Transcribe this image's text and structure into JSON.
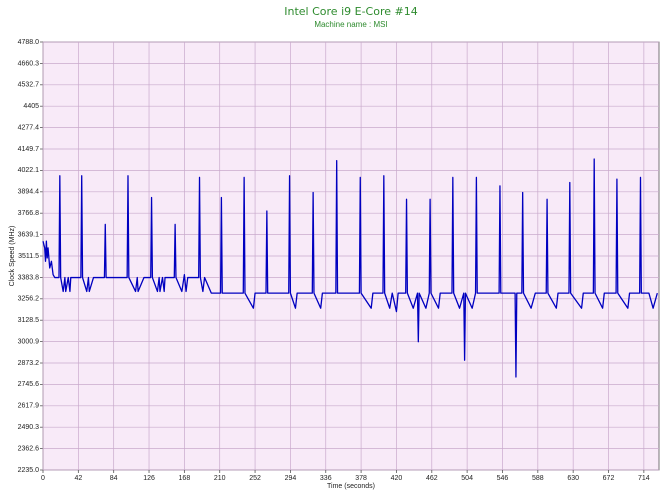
{
  "chart_data": {
    "type": "line",
    "title": "Intel Core i9 E-Core #14",
    "subtitle": "Machine name : MSI",
    "xlabel": "Time (seconds)",
    "ylabel": "Clock Speed (MHz)",
    "color": "#0000c0",
    "grid": true,
    "xlim": [
      0,
      732
    ],
    "ylim": [
      2235,
      4788
    ],
    "xticks": [
      0,
      42,
      84,
      126,
      168,
      210,
      252,
      294,
      336,
      378,
      420,
      462,
      504,
      546,
      588,
      630,
      672,
      714
    ],
    "yticks": [
      {
        "value": 2235,
        "label": "2235.0"
      },
      2362.6,
      2490.3,
      2617.9,
      2745.6,
      2873.2,
      3000.9,
      3128.5,
      3256.2,
      3383.8,
      3511.5,
      3639.1,
      3766.8,
      3894.4,
      4022.1,
      4149.7,
      4277.4,
      4405,
      4532.7,
      4660.3,
      {
        "value": 4788,
        "label": "4788.0"
      }
    ],
    "x": [
      0,
      2,
      3,
      4,
      5,
      6,
      8,
      10,
      12,
      14,
      19,
      20,
      21,
      24,
      26,
      27,
      30,
      32,
      33,
      45,
      46,
      47,
      52,
      54,
      55,
      60,
      73,
      74,
      75,
      100,
      101,
      102,
      110,
      112,
      113,
      120,
      128,
      129,
      130,
      136,
      138,
      139,
      142,
      144,
      145,
      156,
      157,
      158,
      165,
      168,
      170,
      172,
      185,
      186,
      187,
      190,
      192,
      200,
      211,
      212,
      213,
      220,
      238,
      239,
      240,
      250,
      252,
      265,
      266,
      267,
      280,
      292,
      293,
      294,
      300,
      302,
      320,
      321,
      322,
      330,
      332,
      348,
      349,
      350,
      376,
      377,
      378,
      390,
      392,
      404,
      405,
      406,
      412,
      415,
      420,
      422,
      431,
      432,
      433,
      440,
      445,
      446,
      447,
      455,
      459,
      460,
      461,
      470,
      472,
      486,
      487,
      488,
      495,
      500,
      501,
      502,
      510,
      514,
      515,
      516,
      525,
      542,
      543,
      544,
      555,
      561,
      562,
      563,
      569,
      570,
      571,
      580,
      585,
      598,
      599,
      600,
      610,
      612,
      625,
      626,
      627,
      640,
      642,
      654,
      655,
      656,
      665,
      667,
      681,
      682,
      683,
      695,
      697,
      709,
      710,
      711,
      720,
      725,
      730
    ],
    "values": [
      3600,
      3560,
      3480,
      3600,
      3500,
      3560,
      3440,
      3480,
      3400,
      3383,
      3383,
      3990,
      3383,
      3300,
      3383,
      3300,
      3383,
      3300,
      3383,
      3383,
      3990,
      3383,
      3300,
      3383,
      3300,
      3383,
      3383,
      3700,
      3383,
      3383,
      3990,
      3383,
      3300,
      3383,
      3300,
      3383,
      3383,
      3860,
      3383,
      3300,
      3383,
      3300,
      3383,
      3300,
      3383,
      3383,
      3700,
      3383,
      3300,
      3400,
      3300,
      3383,
      3383,
      3980,
      3383,
      3300,
      3383,
      3290,
      3290,
      3860,
      3290,
      3290,
      3290,
      3980,
      3290,
      3200,
      3290,
      3290,
      3780,
      3290,
      3290,
      3290,
      3990,
      3290,
      3200,
      3290,
      3290,
      3890,
      3290,
      3200,
      3290,
      3290,
      4080,
      3290,
      3290,
      3980,
      3290,
      3200,
      3290,
      3290,
      3990,
      3290,
      3200,
      3290,
      3180,
      3290,
      3290,
      3850,
      3290,
      3200,
      3290,
      3000,
      3290,
      3200,
      3290,
      3850,
      3290,
      3200,
      3290,
      3290,
      3980,
      3290,
      3200,
      3290,
      2890,
      3290,
      3200,
      3290,
      3980,
      3290,
      3290,
      3290,
      3930,
      3290,
      3290,
      3290,
      2790,
      3290,
      3290,
      3890,
      3290,
      3200,
      3290,
      3290,
      3850,
      3290,
      3200,
      3290,
      3290,
      3950,
      3290,
      3200,
      3290,
      3290,
      4090,
      3290,
      3200,
      3290,
      3290,
      3970,
      3290,
      3200,
      3290,
      3290,
      3980,
      3290,
      3290,
      3200,
      3290
    ]
  }
}
